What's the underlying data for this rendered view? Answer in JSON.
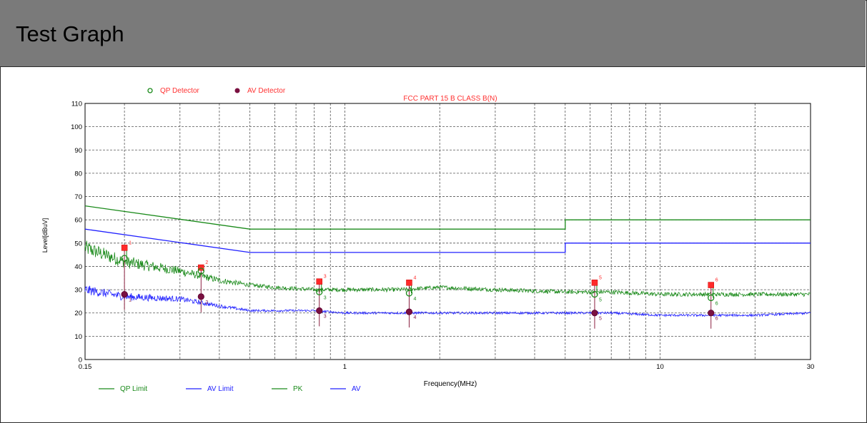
{
  "page": {
    "title": "Test Graph"
  },
  "chart_data": {
    "type": "line",
    "title": "FCC PART 15 B CLASS B(N)",
    "xlabel": "Frequency(MHz)",
    "ylabel": "Level[dBuV]",
    "x_scale": "log",
    "xlim": [
      0.15,
      30
    ],
    "ylim": [
      0,
      110
    ],
    "x_ticks": [
      0.15,
      1,
      10,
      30
    ],
    "x_tick_labels": [
      "0.15",
      "1",
      "10",
      "30"
    ],
    "y_ticks": [
      0,
      10,
      20,
      30,
      40,
      50,
      60,
      70,
      80,
      90,
      100,
      110
    ],
    "y_tick_labels": [
      "0",
      "10",
      "20",
      "30",
      "40",
      "50",
      "60",
      "70",
      "80",
      "90",
      "100",
      "110"
    ],
    "grid": true,
    "legend_top": [
      {
        "label": "QP Detector",
        "marker": "open-circle",
        "color": "#1a8a1a"
      },
      {
        "label": "AV Detector",
        "marker": "filled-circle",
        "color": "#7a1040"
      }
    ],
    "legend_bottom": [
      {
        "label": "QP Limit",
        "color": "#1a8a1a"
      },
      {
        "label": "AV Limit",
        "color": "#2020ff"
      },
      {
        "label": "PK",
        "color": "#1a8a1a"
      },
      {
        "label": "AV",
        "color": "#2020ff"
      }
    ],
    "series": [
      {
        "name": "QP Limit",
        "color": "#1a8a1a",
        "x": [
          0.15,
          0.5,
          0.5,
          5,
          5,
          30
        ],
        "y": [
          66,
          56,
          56,
          56,
          60,
          60
        ]
      },
      {
        "name": "AV Limit",
        "color": "#2020ff",
        "x": [
          0.15,
          0.5,
          0.5,
          5,
          5,
          30
        ],
        "y": [
          56,
          46,
          46,
          46,
          50,
          50
        ]
      },
      {
        "name": "PK",
        "color": "#1a8a1a",
        "x": [
          0.15,
          0.2,
          0.3,
          0.4,
          0.5,
          0.6,
          0.8,
          1,
          1.5,
          2,
          3,
          5,
          7,
          10,
          15,
          20,
          30
        ],
        "y": [
          48,
          42,
          38,
          34,
          32,
          31,
          30,
          30,
          30,
          31,
          30,
          29,
          29,
          28,
          28,
          28,
          28
        ]
      },
      {
        "name": "AV",
        "color": "#2020ff",
        "x": [
          0.15,
          0.2,
          0.3,
          0.4,
          0.5,
          0.6,
          0.8,
          1,
          1.5,
          2,
          3,
          5,
          7,
          10,
          15,
          20,
          30
        ],
        "y": [
          30,
          27,
          26,
          23,
          21,
          21,
          21,
          20,
          20,
          20,
          20,
          20,
          20,
          19,
          19,
          19,
          20
        ]
      }
    ],
    "markers": [
      {
        "id": "1",
        "freq": 0.2,
        "peak": 48,
        "qp": 43.5,
        "av": 28
      },
      {
        "id": "2",
        "freq": 0.35,
        "peak": 39.5,
        "qp": 38,
        "av": 27
      },
      {
        "id": "3",
        "freq": 0.83,
        "peak": 33.5,
        "qp": 29,
        "av": 21
      },
      {
        "id": "4",
        "freq": 1.6,
        "peak": 33,
        "qp": 28.5,
        "av": 20.5
      },
      {
        "id": "5",
        "freq": 6.2,
        "peak": 33,
        "qp": 28,
        "av": 20
      },
      {
        "id": "6",
        "freq": 14.5,
        "peak": 32,
        "qp": 26.5,
        "av": 20
      }
    ]
  }
}
